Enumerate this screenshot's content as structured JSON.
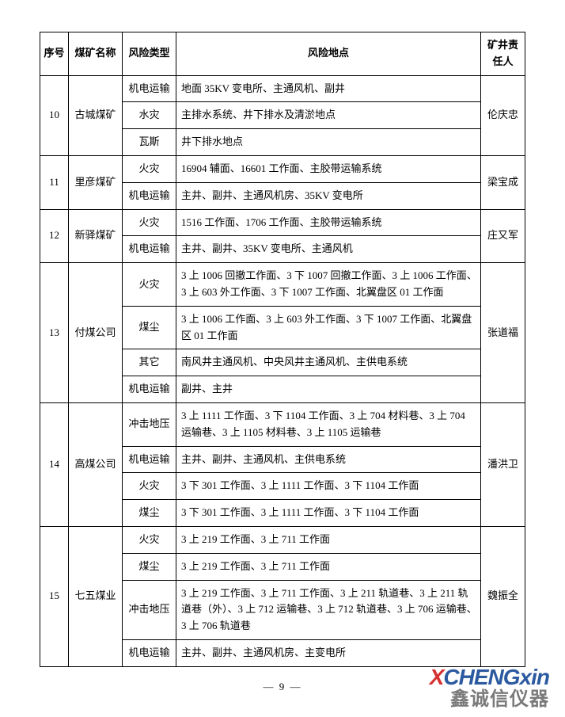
{
  "headers": {
    "seq": "序号",
    "name": "煤矿名称",
    "type": "风险类型",
    "loc": "风险地点",
    "resp": "矿井责任人"
  },
  "groups": [
    {
      "seq": "10",
      "name": "古城煤矿",
      "resp": "伦庆忠",
      "rows": [
        {
          "type": "机电运输",
          "loc": "地面 35KV 变电所、主通风机、副井"
        },
        {
          "type": "水灾",
          "loc": "主排水系统、井下排水及清淤地点"
        },
        {
          "type": "瓦斯",
          "loc": "井下排水地点"
        }
      ]
    },
    {
      "seq": "11",
      "name": "里彦煤矿",
      "resp": "梁宝成",
      "rows": [
        {
          "type": "火灾",
          "loc": "16904 辅面、16601 工作面、主胶带运输系统"
        },
        {
          "type": "机电运输",
          "loc": "主井、副井、主通风机房、35KV 变电所"
        }
      ]
    },
    {
      "seq": "12",
      "name": "新驿煤矿",
      "resp": "庄又军",
      "rows": [
        {
          "type": "火灾",
          "loc": "1516 工作面、1706 工作面、主胶带运输系统"
        },
        {
          "type": "机电运输",
          "loc": "主井、副井、35KV 变电所、主通风机"
        }
      ]
    },
    {
      "seq": "13",
      "name": "付煤公司",
      "resp": "张道福",
      "rows": [
        {
          "type": "火灾",
          "loc": "3 上 1006 回撤工作面、3 下 1007 回撤工作面、3 上 1006 工作面、3 上 603 外工作面、3 下 1007 工作面、北翼盘区 01 工作面"
        },
        {
          "type": "煤尘",
          "loc": "3 上 1006 工作面、3 上 603 外工作面、3 下 1007 工作面、北翼盘区 01 工作面"
        },
        {
          "type": "其它",
          "loc": "南风井主通风机、中央风井主通风机、主供电系统"
        },
        {
          "type": "机电运输",
          "loc": "副井、主井"
        }
      ]
    },
    {
      "seq": "14",
      "name": "高煤公司",
      "resp": "潘洪卫",
      "rows": [
        {
          "type": "冲击地压",
          "loc": "3 上 1111 工作面、3 下 1104 工作面、3 上 704 材料巷、3 上 704 运输巷、3 上 1105 材料巷、3 上 1105 运输巷"
        },
        {
          "type": "机电运输",
          "loc": "主井、副井、主通风机、主供电系统"
        },
        {
          "type": "火灾",
          "loc": "3 下 301 工作面、3 上 1111 工作面、3 下 1104 工作面"
        },
        {
          "type": "煤尘",
          "loc": "3 下 301 工作面、3 上 1111 工作面、3 下 1104 工作面"
        }
      ]
    },
    {
      "seq": "15",
      "name": "七五煤业",
      "resp": "魏振全",
      "rows": [
        {
          "type": "火灾",
          "loc": "3 上 219 工作面、3 上 711 工作面"
        },
        {
          "type": "煤尘",
          "loc": "3 上 219 工作面、3 上 711 工作面"
        },
        {
          "type": "冲击地压",
          "loc": "3 上 219 工作面、3 上 711 工作面、3 上 211 轨道巷、3 上 211 轨道巷（外）、3 上 712 运输巷、3 上 712 轨道巷、3 上 706 运输巷、3 上 706 轨道巷"
        },
        {
          "type": "机电运输",
          "loc": "主井、副井、主通风机房、主变电所"
        }
      ]
    }
  ],
  "page_num": "— 9 —",
  "watermark": {
    "top_x": "X",
    "top_cheng": "CHENG",
    "top_xin": "xin",
    "bottom": "鑫诚信仪器"
  }
}
